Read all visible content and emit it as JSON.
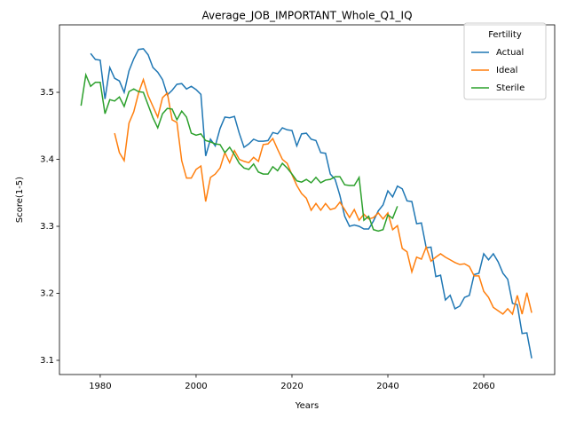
{
  "chart_data": {
    "type": "line",
    "title": "Average_JOB_IMPORTANT_Whole_Q1_IQ",
    "xlabel": "Years",
    "ylabel": "Score(1-5)",
    "legend_title": "Fertility",
    "legend": "upper right",
    "x": [
      1976,
      1977,
      1978,
      1979,
      1980,
      1981,
      1982,
      1983,
      1984,
      1985,
      1986,
      1987,
      1988,
      1989,
      1990,
      1991,
      1992,
      1993,
      1994,
      1995,
      1996,
      1997,
      1998,
      1999,
      2000,
      2001,
      2002,
      2003,
      2004,
      2005,
      2006,
      2007,
      2008,
      2009,
      2010,
      2011,
      2012,
      2013,
      2014,
      2015,
      2016,
      2017,
      2018,
      2019,
      2020,
      2021,
      2022,
      2023,
      2024,
      2025,
      2026,
      2027,
      2028,
      2029,
      2030,
      2031,
      2032,
      2033,
      2034,
      2035,
      2036,
      2037,
      2038,
      2039,
      2040,
      2041,
      2042,
      2043,
      2044,
      2045,
      2046,
      2047,
      2048,
      2049,
      2050,
      2051,
      2052,
      2053,
      2054,
      2055,
      2056,
      2057,
      2058,
      2059,
      2060,
      2061,
      2062,
      2063,
      2064,
      2065,
      2066,
      2067,
      2068,
      2069,
      2070
    ],
    "series": [
      {
        "name": "Actual",
        "color": "#1f77b4",
        "values": [
          null,
          null,
          3.558,
          3.549,
          3.548,
          3.49,
          3.537,
          3.521,
          3.517,
          3.5,
          3.532,
          3.55,
          3.564,
          3.565,
          3.556,
          3.537,
          3.53,
          3.519,
          3.496,
          3.503,
          3.512,
          3.513,
          3.505,
          3.509,
          3.504,
          3.497,
          3.405,
          3.43,
          3.42,
          3.446,
          3.463,
          3.462,
          3.464,
          3.439,
          3.418,
          3.423,
          3.43,
          3.427,
          3.427,
          3.428,
          3.44,
          3.438,
          3.447,
          3.444,
          3.443,
          3.42,
          3.438,
          3.439,
          3.43,
          3.428,
          3.41,
          3.409,
          3.378,
          3.37,
          3.346,
          3.315,
          3.3,
          3.302,
          3.3,
          3.296,
          3.296,
          3.308,
          3.323,
          3.332,
          3.353,
          3.344,
          3.36,
          3.356,
          3.338,
          3.337,
          3.304,
          3.305,
          3.268,
          3.269,
          3.225,
          3.227,
          3.19,
          3.197,
          3.177,
          3.181,
          3.194,
          3.197,
          3.228,
          3.23,
          3.259,
          3.25,
          3.259,
          3.247,
          3.23,
          3.221,
          3.185,
          3.183,
          3.14,
          3.141,
          3.103
        ]
      },
      {
        "name": "Ideal",
        "color": "#ff7f0e",
        "values": [
          null,
          null,
          null,
          null,
          null,
          null,
          null,
          3.439,
          3.41,
          3.398,
          3.454,
          3.471,
          3.499,
          3.519,
          3.495,
          3.479,
          3.463,
          3.492,
          3.499,
          3.459,
          3.455,
          3.398,
          3.372,
          3.372,
          3.385,
          3.39,
          3.337,
          3.373,
          3.378,
          3.387,
          3.41,
          3.395,
          3.413,
          3.4,
          3.397,
          3.395,
          3.403,
          3.397,
          3.422,
          3.423,
          3.431,
          3.415,
          3.4,
          3.394,
          3.377,
          3.361,
          3.349,
          3.342,
          3.324,
          3.334,
          3.324,
          3.334,
          3.325,
          3.327,
          3.336,
          3.325,
          3.313,
          3.325,
          3.309,
          3.318,
          3.311,
          3.313,
          3.32,
          3.311,
          3.32,
          3.295,
          3.301,
          3.267,
          3.262,
          3.232,
          3.254,
          3.251,
          3.269,
          3.248,
          3.254,
          3.259,
          3.254,
          3.25,
          3.246,
          3.243,
          3.244,
          3.24,
          3.226,
          3.226,
          3.203,
          3.194,
          3.179,
          3.174,
          3.169,
          3.177,
          3.169,
          3.197,
          3.169,
          3.201,
          3.171
        ]
      },
      {
        "name": "Sterile",
        "color": "#2ca02c",
        "values": [
          3.48,
          3.526,
          3.509,
          3.515,
          3.515,
          3.468,
          3.489,
          3.487,
          3.493,
          3.479,
          3.501,
          3.505,
          3.501,
          3.5,
          3.481,
          3.462,
          3.447,
          3.468,
          3.476,
          3.475,
          3.459,
          3.472,
          3.463,
          3.439,
          3.436,
          3.438,
          3.428,
          3.426,
          3.423,
          3.422,
          3.41,
          3.418,
          3.407,
          3.394,
          3.387,
          3.385,
          3.393,
          3.381,
          3.378,
          3.378,
          3.389,
          3.383,
          3.394,
          3.387,
          3.378,
          3.368,
          3.366,
          3.37,
          3.365,
          3.373,
          3.365,
          3.369,
          3.37,
          3.374,
          3.374,
          3.362,
          3.361,
          3.361,
          3.373,
          3.309,
          3.315,
          3.295,
          3.293,
          3.295,
          3.317,
          3.312,
          3.33,
          null,
          null,
          null,
          null,
          null,
          null,
          null,
          null,
          null,
          null,
          null,
          null,
          null,
          null,
          null,
          null,
          null,
          null,
          null,
          null,
          null,
          null,
          null,
          null,
          null,
          null,
          null,
          null
        ]
      }
    ],
    "xlim": [
      1971.5,
      2074.8
    ],
    "xticks": [
      1980,
      2000,
      2020,
      2040,
      2060
    ],
    "ylim": [
      3.0788,
      3.6007
    ],
    "yticks": [
      3.1,
      3.2,
      3.3,
      3.4,
      3.5
    ]
  }
}
